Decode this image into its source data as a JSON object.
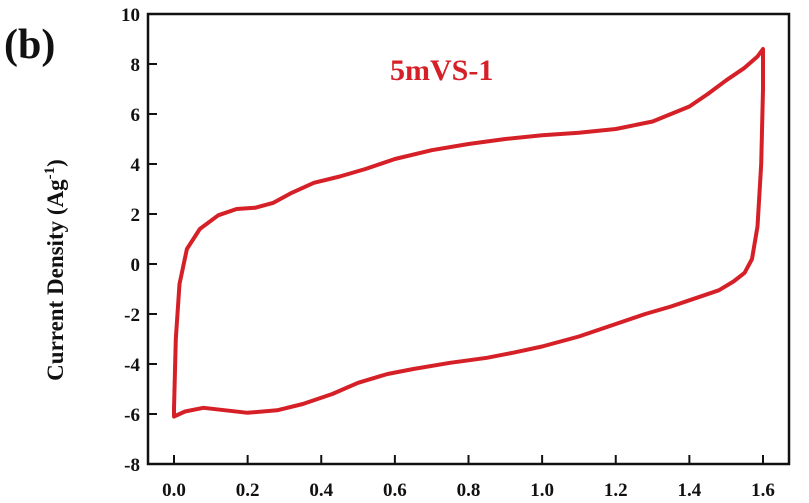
{
  "panel_label": "(b)",
  "chart_data": {
    "type": "line",
    "title": "",
    "xlabel": "",
    "ylabel": "Current Density (Ag",
    "ylabel_superscript": "-1",
    "ylabel_suffix": ")",
    "xlim": [
      0.0,
      1.6
    ],
    "ylim": [
      -8,
      10
    ],
    "x_ticks": [
      "0.0",
      "0.2",
      "0.4",
      "0.6",
      "0.8",
      "1.0",
      "1.2",
      "1.4",
      "1.6"
    ],
    "y_ticks": [
      "-8",
      "-6",
      "-4",
      "-2",
      "0",
      "2",
      "4",
      "6",
      "8",
      "10"
    ],
    "grid": false,
    "legend": null,
    "annotations": [
      {
        "text": "5mVS-1",
        "color": "#d62027"
      }
    ],
    "series": [
      {
        "color": "#d62027",
        "closed": true,
        "points": [
          [
            0.0,
            -5.8
          ],
          [
            0.005,
            -3.0
          ],
          [
            0.015,
            -0.8
          ],
          [
            0.035,
            0.6
          ],
          [
            0.07,
            1.4
          ],
          [
            0.12,
            1.95
          ],
          [
            0.17,
            2.2
          ],
          [
            0.22,
            2.25
          ],
          [
            0.27,
            2.45
          ],
          [
            0.32,
            2.85
          ],
          [
            0.38,
            3.25
          ],
          [
            0.45,
            3.5
          ],
          [
            0.52,
            3.8
          ],
          [
            0.6,
            4.2
          ],
          [
            0.7,
            4.55
          ],
          [
            0.8,
            4.8
          ],
          [
            0.9,
            5.0
          ],
          [
            1.0,
            5.15
          ],
          [
            1.1,
            5.25
          ],
          [
            1.2,
            5.4
          ],
          [
            1.3,
            5.7
          ],
          [
            1.4,
            6.3
          ],
          [
            1.45,
            6.8
          ],
          [
            1.5,
            7.35
          ],
          [
            1.55,
            7.85
          ],
          [
            1.585,
            8.3
          ],
          [
            1.6,
            8.6
          ],
          [
            1.6,
            7.0
          ],
          [
            1.595,
            4.0
          ],
          [
            1.585,
            1.5
          ],
          [
            1.57,
            0.2
          ],
          [
            1.55,
            -0.35
          ],
          [
            1.52,
            -0.7
          ],
          [
            1.48,
            -1.05
          ],
          [
            1.42,
            -1.35
          ],
          [
            1.35,
            -1.7
          ],
          [
            1.28,
            -2.0
          ],
          [
            1.2,
            -2.4
          ],
          [
            1.1,
            -2.9
          ],
          [
            1.0,
            -3.3
          ],
          [
            0.92,
            -3.55
          ],
          [
            0.85,
            -3.75
          ],
          [
            0.75,
            -3.95
          ],
          [
            0.65,
            -4.2
          ],
          [
            0.58,
            -4.4
          ],
          [
            0.5,
            -4.75
          ],
          [
            0.43,
            -5.2
          ],
          [
            0.35,
            -5.6
          ],
          [
            0.28,
            -5.85
          ],
          [
            0.2,
            -5.95
          ],
          [
            0.14,
            -5.85
          ],
          [
            0.08,
            -5.75
          ],
          [
            0.03,
            -5.9
          ],
          [
            0.0,
            -6.1
          ]
        ]
      }
    ]
  }
}
